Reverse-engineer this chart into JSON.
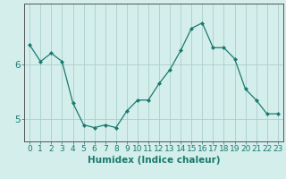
{
  "x": [
    0,
    1,
    2,
    3,
    4,
    5,
    6,
    7,
    8,
    9,
    10,
    11,
    12,
    13,
    14,
    15,
    16,
    17,
    18,
    19,
    20,
    21,
    22,
    23
  ],
  "y": [
    6.35,
    6.05,
    6.2,
    6.05,
    5.3,
    4.9,
    4.85,
    4.9,
    4.85,
    5.15,
    5.35,
    5.35,
    5.65,
    5.9,
    6.25,
    6.65,
    6.75,
    6.3,
    6.3,
    6.1,
    5.55,
    5.35,
    5.1,
    5.1
  ],
  "line_color": "#1a7a6e",
  "marker": "D",
  "marker_size": 2.0,
  "bg_color": "#d4eeec",
  "grid_color": "#aacfcb",
  "xlabel": "Humidex (Indice chaleur)",
  "xlim": [
    -0.5,
    23.5
  ],
  "ylim": [
    4.6,
    7.1
  ],
  "yticks": [
    5,
    6
  ],
  "xticks": [
    0,
    1,
    2,
    3,
    4,
    5,
    6,
    7,
    8,
    9,
    10,
    11,
    12,
    13,
    14,
    15,
    16,
    17,
    18,
    19,
    20,
    21,
    22,
    23
  ],
  "xtick_labels": [
    "0",
    "1",
    "2",
    "3",
    "4",
    "5",
    "6",
    "7",
    "8",
    "9",
    "10",
    "11",
    "12",
    "13",
    "14",
    "15",
    "16",
    "17",
    "18",
    "19",
    "20",
    "21",
    "22",
    "23"
  ],
  "label_fontsize": 7.5,
  "tick_fontsize": 6.5,
  "spine_color": "#555555"
}
